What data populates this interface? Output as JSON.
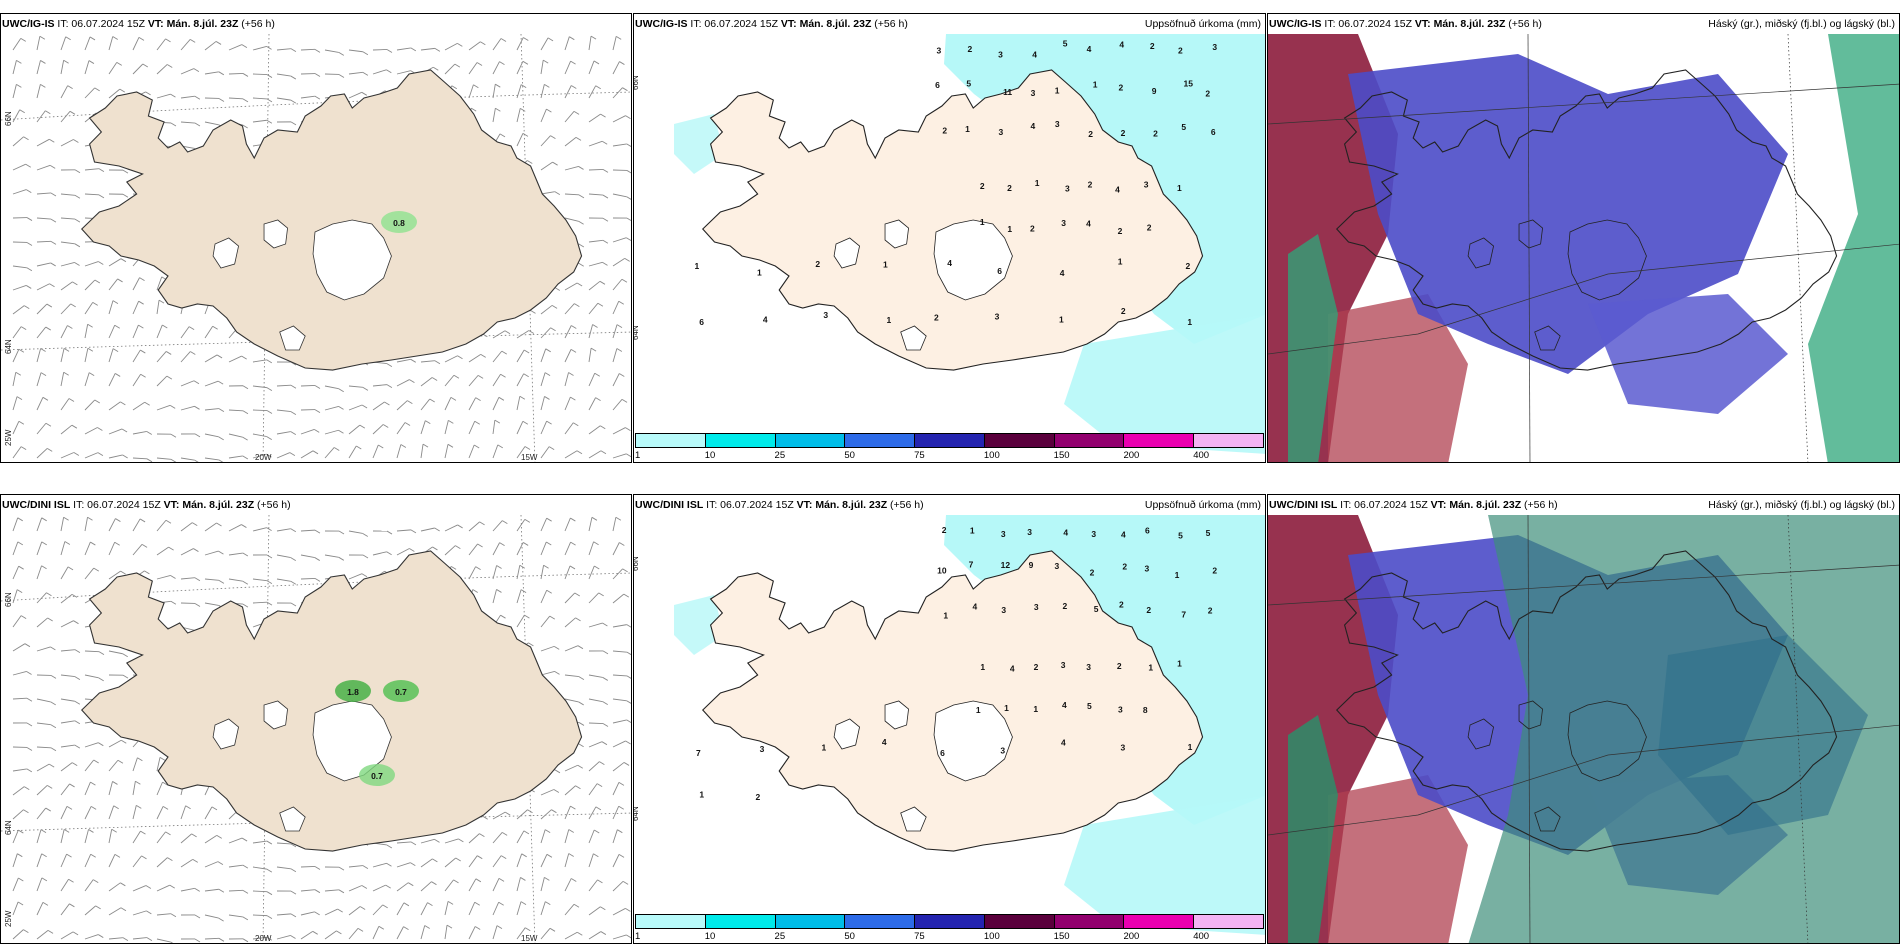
{
  "panels": [
    {
      "id": "p1",
      "model": "UWC/IG-IS",
      "it": "IT: 06.07.2024 15Z",
      "vt": "VT: Mán. 8.júl. 23Z",
      "lead": "(+56 h)",
      "title": "",
      "kind": "wind"
    },
    {
      "id": "p2",
      "model": "UWC/IG-IS",
      "it": "IT: 06.07.2024 15Z",
      "vt": "VT: Mán. 8.júl. 23Z",
      "lead": "(+56 h)",
      "title": "Uppsöfnuð úrkoma (mm)",
      "kind": "precip"
    },
    {
      "id": "p3",
      "model": "UWC/IG-IS",
      "it": "IT: 06.07.2024 15Z",
      "vt": "VT: Mán. 8.júl. 23Z",
      "lead": "(+56 h)",
      "title": "Háský (gr.), miðský (fj.bl.) og lágský (bl.)",
      "kind": "cloud"
    },
    {
      "id": "p4",
      "model": "UWC/DINI ISL",
      "it": "IT: 06.07.2024 15Z",
      "vt": "VT: Mán. 8.júl. 23Z",
      "lead": "(+56 h)",
      "title": "",
      "kind": "wind"
    },
    {
      "id": "p5",
      "model": "UWC/DINI ISL",
      "it": "IT: 06.07.2024 15Z",
      "vt": "VT: Mán. 8.júl. 23Z",
      "lead": "(+56 h)",
      "title": "Uppsöfnuð úrkoma (mm)",
      "kind": "precip"
    },
    {
      "id": "p6",
      "model": "UWC/DINI ISL",
      "it": "IT: 06.07.2024 15Z",
      "vt": "VT: Mán. 8.júl. 23Z",
      "lead": "(+56 h)",
      "title": "Háský (gr.), miðský (fj.bl.) og lágský (bl.)",
      "kind": "cloud"
    }
  ],
  "axis_labels": {
    "lat66": "66N",
    "lat64": "64N",
    "lon20": "20W",
    "lon15": "15W",
    "lon25": "25W"
  },
  "wind_highlights": {
    "p1": [
      "0.8"
    ],
    "p4": [
      "1.8",
      "0.7",
      "0.7"
    ]
  },
  "precip_labels": {
    "p2": [
      "3",
      "2",
      "3",
      "4",
      "5",
      "4",
      "4",
      "2",
      "2",
      "3",
      "6",
      "5",
      "11",
      "3",
      "1",
      "1",
      "2",
      "9",
      "15",
      "2",
      "2",
      "1",
      "3",
      "4",
      "3",
      "2",
      "2",
      "2",
      "5",
      "6",
      "2",
      "2",
      "1",
      "3",
      "2",
      "4",
      "3",
      "1",
      "1",
      "1",
      "2",
      "3",
      "4",
      "2",
      "2",
      "1",
      "1",
      "2",
      "1",
      "4",
      "6",
      "4",
      "1",
      "2",
      "6",
      "4",
      "3",
      "1",
      "2",
      "3",
      "1",
      "2",
      "1"
    ],
    "p5": [
      "2",
      "1",
      "3",
      "3",
      "4",
      "3",
      "4",
      "6",
      "5",
      "5",
      "10",
      "7",
      "12",
      "9",
      "3",
      "2",
      "2",
      "3",
      "1",
      "2",
      "1",
      "4",
      "3",
      "3",
      "2",
      "5",
      "2",
      "2",
      "7",
      "2",
      "1",
      "4",
      "2",
      "3",
      "3",
      "2",
      "1",
      "1",
      "1",
      "1",
      "1",
      "4",
      "5",
      "3",
      "8",
      "7",
      "3",
      "1",
      "4",
      "6",
      "3",
      "4",
      "3",
      "1",
      "1",
      "2"
    ]
  },
  "colorbar": {
    "labels": [
      "1",
      "10",
      "25",
      "50",
      "75",
      "100",
      "150",
      "200",
      "400"
    ],
    "colors": [
      "#b8fafa",
      "#00eaea",
      "#00bde8",
      "#2d6be8",
      "#2424b0",
      "#5a003c",
      "#92006e",
      "#ea00b0",
      "#f3b3f3"
    ]
  }
}
